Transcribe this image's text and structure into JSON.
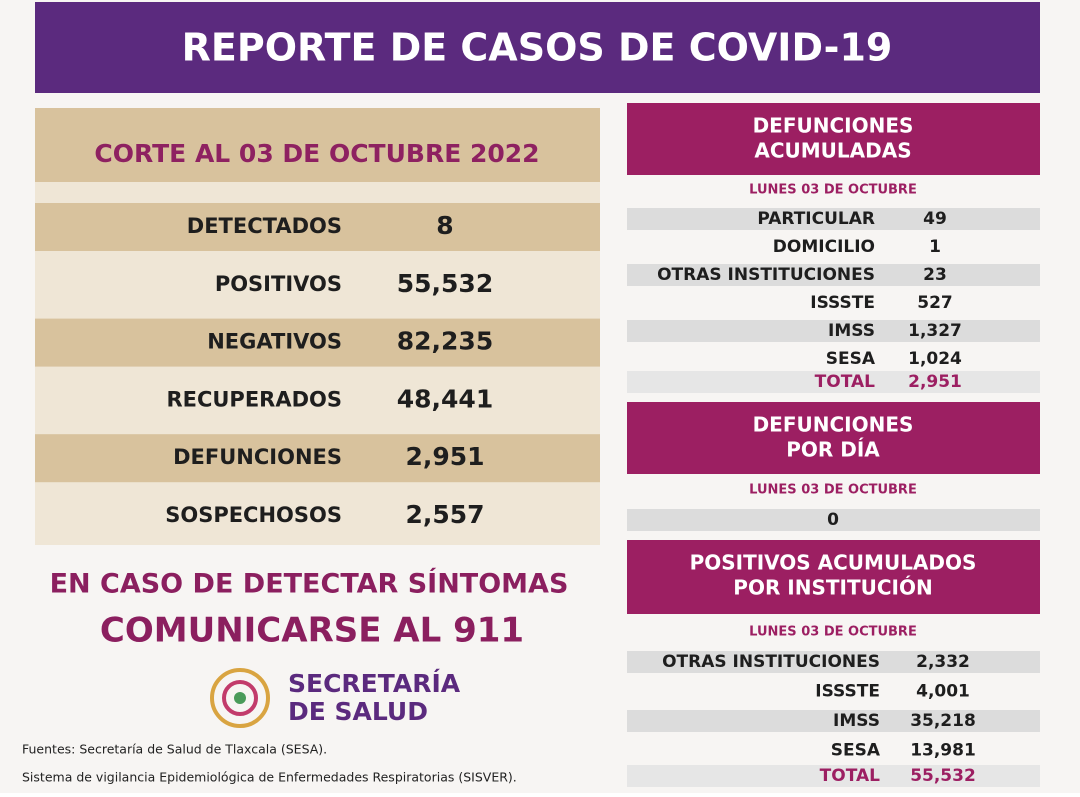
{
  "header": {
    "title": "REPORTE DE CASOS DE COVID-19"
  },
  "summary": {
    "cut": "CORTE AL 03 DE OCTUBRE 2022",
    "rows": [
      [
        "DETECTADOS",
        "8"
      ],
      [
        "POSITIVOS",
        "55,532"
      ],
      [
        "NEGATIVOS",
        "82,235"
      ],
      [
        "RECUPERADOS",
        "48,441"
      ],
      [
        "DEFUNCIONES",
        "2,951"
      ],
      [
        "SOSPECHOSOS",
        "2,557"
      ]
    ]
  },
  "call": [
    "EN CASO DE DETECTAR SÍNTOMAS",
    "COMUNICARSE AL 911"
  ],
  "logo": [
    "SECRETARÍA",
    "DE SALUD"
  ],
  "sources": [
    "Fuentes:  Secretaría de Salud de Tlaxcala (SESA).",
    "Sistema de vigilancia Epidemiológica de Enfermedades Respiratorias (SISVER)."
  ],
  "sections": [
    {
      "title": [
        "DEFUNCIONES",
        "ACUMULADAS"
      ],
      "date": "LUNES 03 DE OCTUBRE",
      "rows": [
        [
          "PARTICULAR",
          "49"
        ],
        [
          "DOMICILIO",
          "1"
        ],
        [
          "OTRAS INSTITUCIONES",
          "23"
        ],
        [
          "ISSSTE",
          "527"
        ],
        [
          "IMSS",
          "1,327"
        ],
        [
          "SESA",
          "1,024"
        ]
      ],
      "total": [
        "TOTAL",
        "2,951"
      ]
    },
    {
      "title": [
        "DEFUNCIONES",
        "POR DÍA"
      ],
      "date": "LUNES 03 DE OCTUBRE",
      "rows": [
        [
          "0"
        ]
      ]
    },
    {
      "title": [
        "POSITIVOS ACUMULADOS",
        "POR INSTITUCIÓN"
      ],
      "date": "LUNES 03 DE OCTUBRE",
      "rows": [
        [
          "OTRAS INSTITUCIONES",
          "2,332"
        ],
        [
          "ISSSTE",
          "4,001"
        ],
        [
          "IMSS",
          "35,218"
        ],
        [
          "SESA",
          "13,981"
        ]
      ],
      "total": [
        "TOTAL",
        "55,532"
      ]
    }
  ]
}
